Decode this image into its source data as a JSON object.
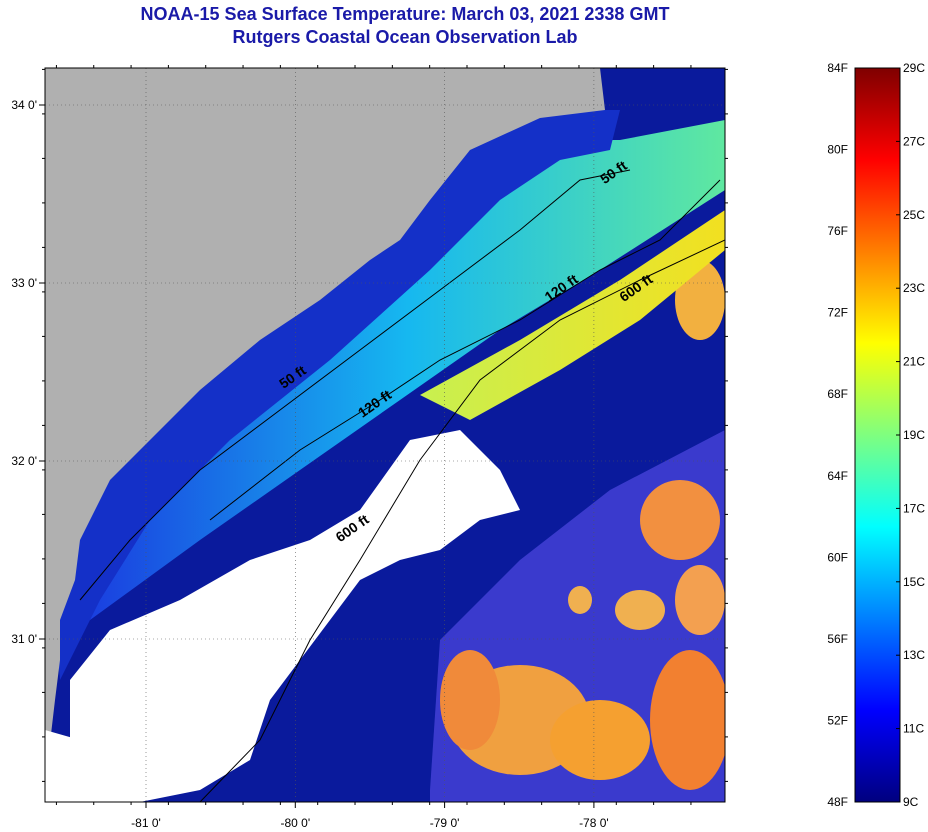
{
  "title_line1": "NOAA-15 Sea Surface Temperature:  March 03, 2021 2338 GMT",
  "title_line2": "Rutgers Coastal Ocean Observation Lab",
  "map": {
    "lat_labels": [
      "34 0'",
      "33 0'",
      "32 0'",
      "31 0'"
    ],
    "lat_values": [
      34.0,
      33.0,
      32.0,
      31.0
    ],
    "lon_labels": [
      "-81 0'",
      "-80 0'",
      "-79 0'",
      "-78 0'"
    ],
    "lon_values": [
      -81.0,
      -80.0,
      -79.0,
      -78.0
    ],
    "colors": {
      "land": "#b0b0b0",
      "cloud": "#ffffff",
      "cold_water": "#0a1a9c",
      "accent_title": "#1a1aa8"
    },
    "contour_labels": [
      {
        "text": "50 ft",
        "lon": -77.85,
        "lat": 33.6
      },
      {
        "text": "50 ft",
        "lon": -80.0,
        "lat": 32.45
      },
      {
        "text": "120 ft",
        "lon": -78.2,
        "lat": 32.95
      },
      {
        "text": "120 ft",
        "lon": -79.45,
        "lat": 32.3
      },
      {
        "text": "600 ft",
        "lon": -77.7,
        "lat": 32.95
      },
      {
        "text": "600 ft",
        "lon": -79.6,
        "lat": 31.6
      }
    ]
  },
  "colorbar": {
    "f_labels": [
      "84F",
      "80F",
      "76F",
      "72F",
      "68F",
      "64F",
      "60F",
      "56F",
      "52F",
      "48F"
    ],
    "c_labels": [
      "29C",
      "27C",
      "25C",
      "23C",
      "21C",
      "19C",
      "17C",
      "15C",
      "13C",
      "11C",
      "9C"
    ],
    "stops": [
      "#00007f",
      "#0000ff",
      "#007fff",
      "#00ffff",
      "#7fff7f",
      "#ffff00",
      "#ff7f00",
      "#ff0000",
      "#7f0000"
    ]
  }
}
